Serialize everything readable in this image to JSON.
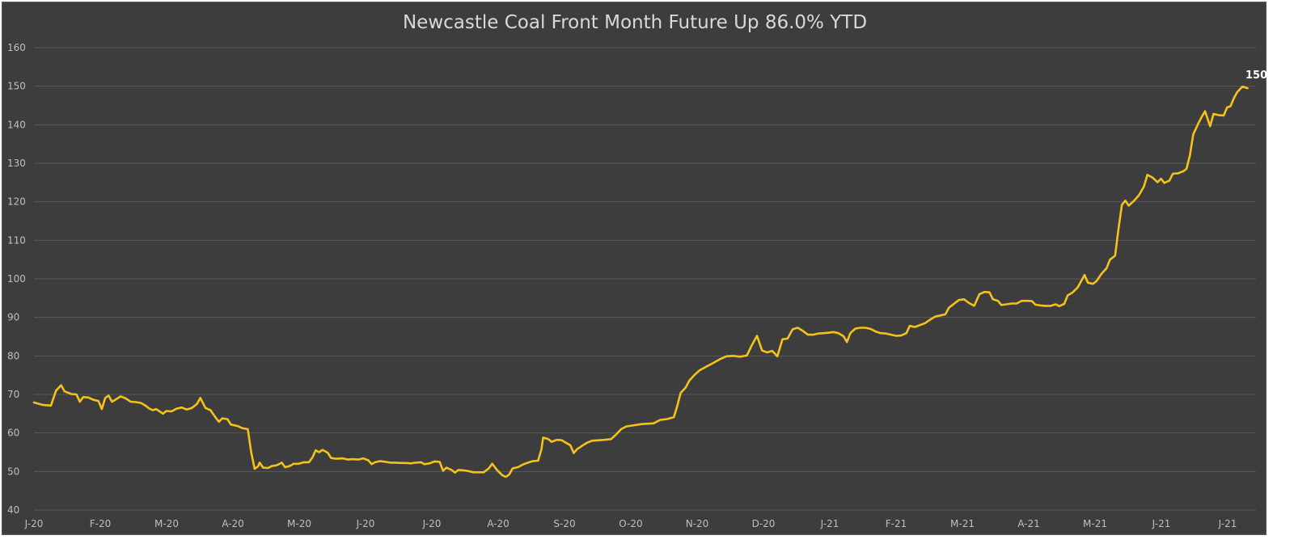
{
  "chart_data": {
    "type": "line",
    "title": "Newcastle Coal Front Month Future Up 86.0% YTD",
    "xlabel": "",
    "ylabel": "",
    "ylim": [
      40,
      160
    ],
    "yticks": [
      40,
      50,
      60,
      70,
      80,
      90,
      100,
      110,
      120,
      130,
      140,
      150,
      160
    ],
    "xticks": [
      "J-20",
      "F-20",
      "M-20",
      "A-20",
      "M-20",
      "J-20",
      "J-20",
      "A-20",
      "S-20",
      "O-20",
      "N-20",
      "D-20",
      "J-21",
      "F-21",
      "M-21",
      "A-21",
      "M-21",
      "J-21",
      "J-21"
    ],
    "grid": "horizontal",
    "legend": "none",
    "line_color": "#f5c21b",
    "end_label": "150",
    "series": [
      {
        "points": [
          [
            0,
            67.9
          ],
          [
            0.5,
            67.3
          ],
          [
            1,
            67.1
          ],
          [
            1.3,
            71
          ],
          [
            1.6,
            72.4
          ],
          [
            1.8,
            70.8
          ],
          [
            2.2,
            70.1
          ],
          [
            2.5,
            70
          ],
          [
            2.7,
            68.1
          ],
          [
            2.9,
            69.3
          ],
          [
            3.2,
            69.2
          ],
          [
            3.5,
            68.6
          ],
          [
            3.8,
            68.3
          ],
          [
            4.0,
            66.2
          ],
          [
            4.2,
            69.1
          ],
          [
            4.4,
            69.7
          ],
          [
            4.6,
            68.1
          ],
          [
            4.9,
            68.9
          ],
          [
            5.1,
            69.5
          ],
          [
            5.4,
            69.0
          ],
          [
            5.7,
            68.1
          ],
          [
            6.0,
            68.0
          ],
          [
            6.3,
            67.8
          ],
          [
            6.6,
            67.0
          ],
          [
            6.8,
            66.3
          ],
          [
            7.0,
            65.9
          ],
          [
            7.2,
            66.2
          ],
          [
            7.4,
            65.6
          ],
          [
            7.6,
            65.0
          ],
          [
            7.8,
            65.7
          ],
          [
            8.1,
            65.6
          ],
          [
            8.4,
            66.3
          ],
          [
            8.7,
            66.6
          ],
          [
            9.0,
            66.1
          ],
          [
            9.3,
            66.5
          ],
          [
            9.6,
            67.5
          ],
          [
            9.8,
            69.1
          ],
          [
            10.1,
            66.5
          ],
          [
            10.4,
            65.9
          ],
          [
            10.7,
            64.0
          ],
          [
            10.9,
            62.9
          ],
          [
            11.1,
            63.8
          ],
          [
            11.4,
            63.6
          ],
          [
            11.6,
            62.2
          ],
          [
            12.0,
            61.8
          ],
          [
            12.3,
            61.2
          ],
          [
            12.6,
            61.0
          ],
          [
            12.8,
            55.0
          ],
          [
            13.0,
            50.7
          ],
          [
            13.2,
            51.3
          ],
          [
            13.3,
            52.3
          ],
          [
            13.5,
            51.0
          ],
          [
            13.8,
            50.9
          ],
          [
            14.0,
            51.4
          ],
          [
            14.3,
            51.6
          ],
          [
            14.6,
            52.3
          ],
          [
            14.8,
            51.1
          ],
          [
            15.1,
            51.5
          ],
          [
            15.3,
            52.0
          ],
          [
            15.6,
            52.0
          ],
          [
            15.9,
            52.4
          ],
          [
            16.2,
            52.4
          ],
          [
            16.4,
            53.6
          ],
          [
            16.6,
            55.5
          ],
          [
            16.8,
            55.0
          ],
          [
            17.0,
            55.6
          ],
          [
            17.3,
            54.9
          ],
          [
            17.5,
            53.5
          ],
          [
            17.8,
            53.3
          ],
          [
            18.2,
            53.4
          ],
          [
            18.5,
            53.1
          ],
          [
            18.8,
            53.2
          ],
          [
            19.1,
            53.1
          ],
          [
            19.4,
            53.4
          ],
          [
            19.7,
            52.9
          ],
          [
            19.9,
            51.9
          ],
          [
            20.1,
            52.4
          ],
          [
            20.4,
            52.7
          ],
          [
            20.7,
            52.5
          ],
          [
            21.0,
            52.3
          ],
          [
            21.3,
            52.3
          ],
          [
            21.6,
            52.2
          ],
          [
            21.9,
            52.2
          ],
          [
            22.2,
            52.1
          ],
          [
            22.5,
            52.3
          ],
          [
            22.8,
            52.4
          ],
          [
            23.0,
            51.9
          ],
          [
            23.3,
            52.1
          ],
          [
            23.6,
            52.6
          ],
          [
            23.9,
            52.5
          ],
          [
            24.1,
            50.2
          ],
          [
            24.3,
            51.0
          ],
          [
            24.6,
            50.4
          ],
          [
            24.8,
            49.7
          ],
          [
            25.0,
            50.4
          ],
          [
            25.3,
            50.3
          ],
          [
            25.6,
            50.1
          ],
          [
            25.9,
            49.8
          ],
          [
            26.2,
            49.8
          ],
          [
            26.5,
            49.8
          ],
          [
            26.8,
            50.8
          ],
          [
            27.0,
            52.0
          ],
          [
            27.3,
            50.3
          ],
          [
            27.6,
            49.0
          ],
          [
            27.8,
            48.6
          ],
          [
            28.0,
            49.2
          ],
          [
            28.2,
            50.8
          ],
          [
            28.5,
            51.1
          ],
          [
            28.8,
            51.8
          ],
          [
            29.1,
            52.3
          ],
          [
            29.4,
            52.7
          ],
          [
            29.7,
            52.8
          ],
          [
            29.9,
            55.8
          ],
          [
            30.0,
            58.8
          ],
          [
            30.3,
            58.4
          ],
          [
            30.5,
            57.7
          ],
          [
            30.8,
            58.2
          ],
          [
            31.1,
            58.1
          ],
          [
            31.4,
            57.3
          ],
          [
            31.6,
            56.8
          ],
          [
            31.8,
            54.8
          ],
          [
            32.0,
            55.8
          ],
          [
            32.3,
            56.7
          ],
          [
            32.6,
            57.5
          ],
          [
            32.9,
            58.0
          ],
          [
            33.3,
            58.1
          ],
          [
            33.6,
            58.2
          ],
          [
            34.0,
            58.4
          ],
          [
            34.3,
            59.6
          ],
          [
            34.6,
            61.0
          ],
          [
            34.9,
            61.7
          ],
          [
            35.2,
            61.9
          ],
          [
            35.5,
            62.1
          ],
          [
            35.8,
            62.3
          ],
          [
            36.2,
            62.4
          ],
          [
            36.5,
            62.5
          ],
          [
            36.9,
            63.4
          ],
          [
            37.3,
            63.6
          ],
          [
            37.7,
            64.1
          ],
          [
            37.9,
            67.0
          ],
          [
            38.1,
            70.4
          ],
          [
            38.4,
            71.8
          ],
          [
            38.6,
            73.5
          ],
          [
            38.9,
            75.0
          ],
          [
            39.2,
            76.2
          ],
          [
            39.6,
            77.2
          ],
          [
            40.0,
            78.1
          ],
          [
            40.4,
            79.1
          ],
          [
            40.8,
            79.9
          ],
          [
            41.2,
            80.0
          ],
          [
            41.6,
            79.8
          ],
          [
            42.0,
            80.1
          ],
          [
            42.3,
            82.8
          ],
          [
            42.6,
            85.2
          ],
          [
            42.9,
            81.4
          ],
          [
            43.2,
            80.9
          ],
          [
            43.5,
            81.3
          ],
          [
            43.8,
            79.9
          ],
          [
            44.1,
            84.3
          ],
          [
            44.4,
            84.5
          ],
          [
            44.7,
            86.9
          ],
          [
            45.0,
            87.3
          ],
          [
            45.3,
            86.5
          ],
          [
            45.6,
            85.5
          ],
          [
            45.9,
            85.5
          ],
          [
            46.2,
            85.8
          ],
          [
            46.5,
            85.9
          ],
          [
            46.8,
            86.0
          ],
          [
            47.1,
            86.2
          ],
          [
            47.4,
            85.9
          ],
          [
            47.7,
            85.1
          ],
          [
            47.9,
            83.6
          ],
          [
            48.1,
            85.9
          ],
          [
            48.4,
            87.1
          ],
          [
            48.7,
            87.3
          ],
          [
            49.0,
            87.3
          ],
          [
            49.3,
            87.0
          ],
          [
            49.6,
            86.3
          ],
          [
            49.9,
            85.9
          ],
          [
            50.2,
            85.8
          ],
          [
            50.5,
            85.5
          ],
          [
            50.8,
            85.2
          ],
          [
            51.1,
            85.3
          ],
          [
            51.4,
            85.9
          ],
          [
            51.6,
            87.8
          ],
          [
            51.9,
            87.5
          ],
          [
            52.2,
            88.0
          ],
          [
            52.5,
            88.5
          ],
          [
            52.8,
            89.4
          ],
          [
            53.1,
            90.2
          ],
          [
            53.4,
            90.5
          ],
          [
            53.7,
            90.8
          ],
          [
            53.9,
            92.5
          ],
          [
            54.2,
            93.5
          ],
          [
            54.5,
            94.5
          ],
          [
            54.8,
            94.7
          ],
          [
            55.1,
            93.7
          ],
          [
            55.4,
            93.0
          ],
          [
            55.7,
            96.0
          ],
          [
            56.0,
            96.6
          ],
          [
            56.3,
            96.5
          ],
          [
            56.5,
            94.7
          ],
          [
            56.8,
            94.3
          ],
          [
            57.0,
            93.2
          ],
          [
            57.3,
            93.4
          ],
          [
            57.6,
            93.6
          ],
          [
            57.9,
            93.6
          ],
          [
            58.2,
            94.3
          ],
          [
            58.5,
            94.3
          ],
          [
            58.8,
            94.2
          ],
          [
            59.0,
            93.3
          ],
          [
            59.3,
            93.1
          ],
          [
            59.6,
            93.0
          ],
          [
            59.9,
            93.0
          ],
          [
            60.2,
            93.4
          ],
          [
            60.4,
            92.9
          ],
          [
            60.7,
            93.5
          ],
          [
            60.9,
            95.7
          ],
          [
            61.2,
            96.5
          ],
          [
            61.5,
            97.8
          ],
          [
            61.7,
            99.4
          ],
          [
            61.9,
            101.0
          ],
          [
            62.1,
            99.0
          ],
          [
            62.4,
            98.7
          ],
          [
            62.6,
            99.4
          ],
          [
            62.9,
            101.3
          ],
          [
            63.2,
            102.8
          ],
          [
            63.4,
            105.0
          ],
          [
            63.7,
            106.0
          ],
          [
            63.9,
            113.0
          ],
          [
            64.1,
            119.2
          ],
          [
            64.3,
            120.3
          ],
          [
            64.5,
            119.0
          ],
          [
            64.8,
            120.2
          ],
          [
            65.1,
            121.7
          ],
          [
            65.4,
            124.0
          ],
          [
            65.6,
            127.0
          ],
          [
            65.9,
            126.3
          ],
          [
            66.2,
            125.1
          ],
          [
            66.4,
            126.0
          ],
          [
            66.6,
            124.9
          ],
          [
            66.9,
            125.5
          ],
          [
            67.1,
            127.3
          ],
          [
            67.4,
            127.4
          ],
          [
            67.7,
            127.9
          ],
          [
            67.9,
            128.5
          ],
          [
            68.1,
            132.0
          ],
          [
            68.3,
            137.5
          ],
          [
            68.6,
            140.3
          ],
          [
            68.8,
            142.0
          ],
          [
            69.0,
            143.5
          ],
          [
            69.3,
            139.6
          ],
          [
            69.5,
            142.8
          ],
          [
            69.8,
            142.5
          ],
          [
            70.1,
            142.4
          ],
          [
            70.3,
            144.5
          ],
          [
            70.5,
            144.8
          ],
          [
            70.7,
            146.9
          ],
          [
            70.9,
            148.5
          ],
          [
            71.2,
            149.9
          ],
          [
            71.5,
            149.5
          ]
        ]
      }
    ]
  }
}
